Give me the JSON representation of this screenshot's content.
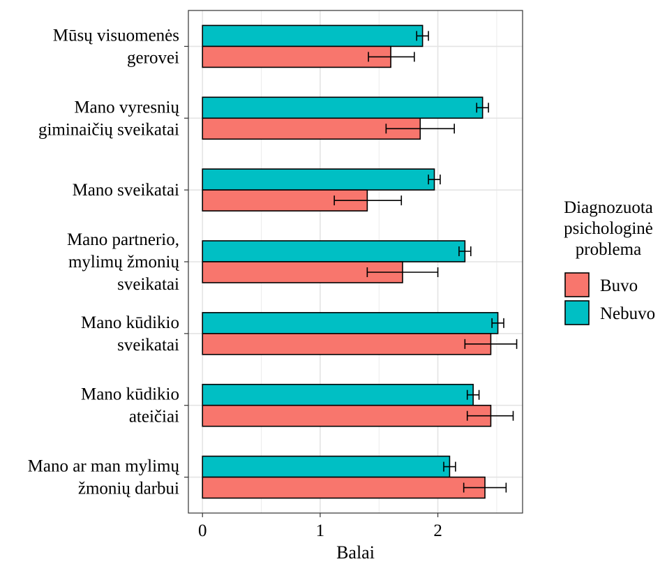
{
  "chart_data": {
    "type": "bar",
    "orientation": "horizontal",
    "categories": [
      [
        "Mūsų visuomenės",
        "gerovei"
      ],
      [
        "Mano vyresnių",
        "giminaičių sveikatai"
      ],
      [
        "Mano sveikatai"
      ],
      [
        "Mano partnerio,",
        "mylimų žmonių",
        "sveikatai"
      ],
      [
        "Mano kūdikio",
        "sveikatai"
      ],
      [
        "Mano kūdikio",
        "ateičiai"
      ],
      [
        "Mano ar man mylimų",
        "žmonių darbui"
      ]
    ],
    "series": [
      {
        "name": "Nebuvo",
        "color": "#00BFC4",
        "values": [
          1.87,
          2.38,
          1.97,
          2.23,
          2.51,
          2.3,
          2.1
        ],
        "errors": [
          [
            1.82,
            1.92
          ],
          [
            2.33,
            2.43
          ],
          [
            1.92,
            2.02
          ],
          [
            2.18,
            2.28
          ],
          [
            2.46,
            2.56
          ],
          [
            2.25,
            2.35
          ],
          [
            2.05,
            2.15
          ]
        ]
      },
      {
        "name": "Buvo",
        "color": "#F8766D",
        "values": [
          1.6,
          1.85,
          1.4,
          1.7,
          2.45,
          2.45,
          2.4
        ],
        "errors": [
          [
            1.41,
            1.8
          ],
          [
            1.56,
            2.14
          ],
          [
            1.12,
            1.69
          ],
          [
            1.4,
            2.0
          ],
          [
            2.23,
            2.67
          ],
          [
            2.25,
            2.64
          ],
          [
            2.22,
            2.58
          ]
        ]
      }
    ],
    "xlabel": "Balai",
    "ylabel": "",
    "xlim": [
      -0.12,
      2.72
    ],
    "xticks": [
      0,
      1,
      2
    ],
    "xtick_labels": [
      "0",
      "1",
      "2"
    ],
    "grid": true,
    "legend": {
      "title": [
        "Diagnozuota",
        "psichologinė",
        "problema"
      ],
      "entries": [
        {
          "label": "Buvo",
          "color": "#F8766D"
        },
        {
          "label": "Nebuvo",
          "color": "#00BFC4"
        }
      ],
      "position": "right"
    }
  }
}
